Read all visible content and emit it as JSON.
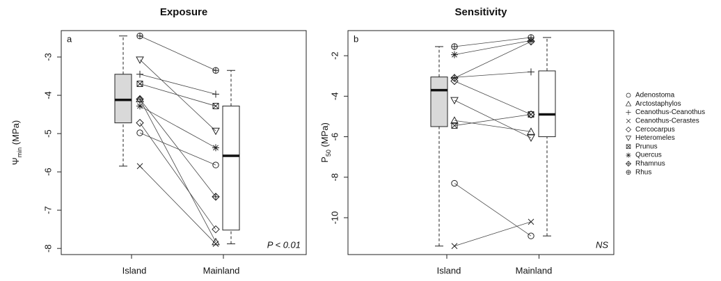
{
  "legend": [
    {
      "name": "Adenostoma",
      "marker": "circle"
    },
    {
      "name": "Arctostaphylos",
      "marker": "triangle-up"
    },
    {
      "name": "Ceanothus-Ceanothus",
      "marker": "plus"
    },
    {
      "name": "Ceanothus-Cerastes",
      "marker": "cross"
    },
    {
      "name": "Cercocarpus",
      "marker": "diamond"
    },
    {
      "name": "Heteromeles",
      "marker": "triangle-down"
    },
    {
      "name": "Prunus",
      "marker": "square-cross"
    },
    {
      "name": "Quercus",
      "marker": "asterisk"
    },
    {
      "name": "Rhamnus",
      "marker": "diamond-plus"
    },
    {
      "name": "Rhus",
      "marker": "circle-plus"
    }
  ],
  "chart_data": [
    {
      "type": "paired-box",
      "title": "Exposure",
      "panel_label": "a",
      "stat_label": "P < 0.01",
      "y_label_parts": [
        "Ψ",
        "min",
        " (MPa)"
      ],
      "categories": [
        "Island",
        "Mainland"
      ],
      "ylim": [
        -8.16,
        -2.31
      ],
      "yticks": [
        -3,
        -4,
        -5,
        -6,
        -7,
        -8
      ],
      "series": [
        {
          "values": [
            -4.98,
            -5.82
          ]
        },
        {
          "values": [
            -4.1,
            -7.83
          ]
        },
        {
          "values": [
            -3.45,
            -3.97
          ]
        },
        {
          "values": [
            -5.85,
            -7.88
          ]
        },
        {
          "values": [
            -4.72,
            -7.5
          ]
        },
        {
          "values": [
            -3.07,
            -4.93
          ]
        },
        {
          "values": [
            -3.7,
            -4.28
          ]
        },
        {
          "values": [
            -4.28,
            -5.37
          ]
        },
        {
          "values": [
            -4.1,
            -6.65
          ]
        },
        {
          "values": [
            -2.45,
            -3.35
          ]
        }
      ],
      "boxes": [
        {
          "whisker_low": -5.85,
          "q1": -4.72,
          "median": -4.12,
          "q3": -3.45,
          "whisker_high": -2.45,
          "color": "#d9d9d9"
        },
        {
          "whisker_low": -7.88,
          "q1": -7.52,
          "median": -5.58,
          "q3": -4.28,
          "whisker_high": -3.35,
          "color": "#ffffff"
        }
      ]
    },
    {
      "type": "paired-box",
      "title": "Sensitivity",
      "panel_label": "b",
      "stat_label": "NS",
      "y_label_parts": [
        "P",
        "50",
        " (MPa)"
      ],
      "categories": [
        "Island",
        "Mainland"
      ],
      "ylim": [
        -11.82,
        -0.76
      ],
      "yticks": [
        -2,
        -4,
        -6,
        -8,
        -10
      ],
      "series": [
        {
          "values": [
            -8.3,
            -10.9
          ]
        },
        {
          "values": [
            -5.2,
            -5.75
          ]
        },
        {
          "values": [
            -3.07,
            -2.8
          ]
        },
        {
          "values": [
            -11.4,
            -10.2
          ]
        },
        {
          "values": [
            -3.25,
            -4.9
          ]
        },
        {
          "values": [
            -4.2,
            -6.05
          ]
        },
        {
          "values": [
            -5.45,
            -4.9
          ]
        },
        {
          "values": [
            -1.95,
            -1.25
          ]
        },
        {
          "values": [
            -3.1,
            -1.3
          ]
        },
        {
          "values": [
            -1.55,
            -1.1
          ]
        }
      ],
      "boxes": [
        {
          "whisker_low": -11.4,
          "q1": -5.5,
          "median": -3.7,
          "q3": -3.05,
          "whisker_high": -1.55,
          "color": "#d9d9d9"
        },
        {
          "whisker_low": -10.9,
          "q1": -6.0,
          "median": -4.9,
          "q3": -2.75,
          "whisker_high": -1.1,
          "color": "#ffffff"
        }
      ]
    }
  ]
}
